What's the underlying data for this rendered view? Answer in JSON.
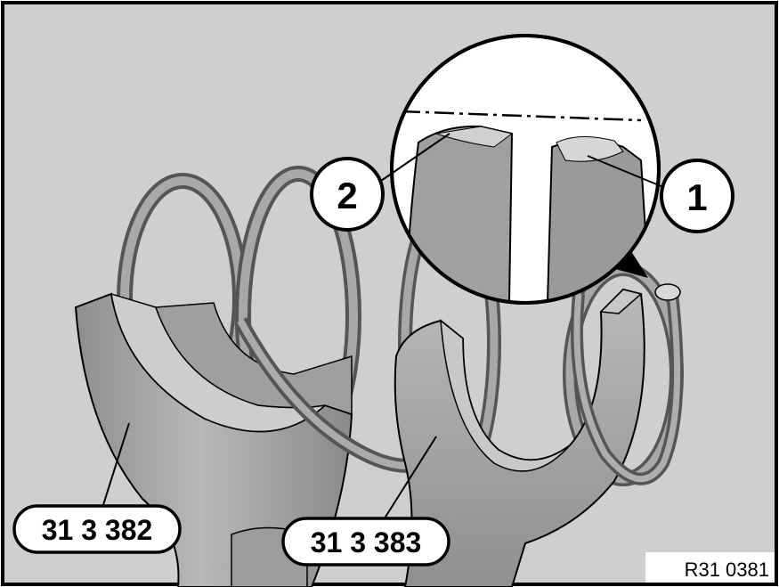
{
  "callouts": [
    {
      "id": "1",
      "label": "1"
    },
    {
      "id": "2",
      "label": "2"
    }
  ],
  "tools": [
    {
      "id": "left",
      "label": "31 3 382"
    },
    {
      "id": "right",
      "label": "31 3 383"
    }
  ],
  "figure_code": "R31 0381",
  "colors": {
    "background": "#cfcfcf",
    "metal_light": "#b4b4b4",
    "metal_mid": "#9a9a9a",
    "metal_dark": "#6e6e6e",
    "outline": "#000000",
    "label_bg": "#ffffff"
  }
}
